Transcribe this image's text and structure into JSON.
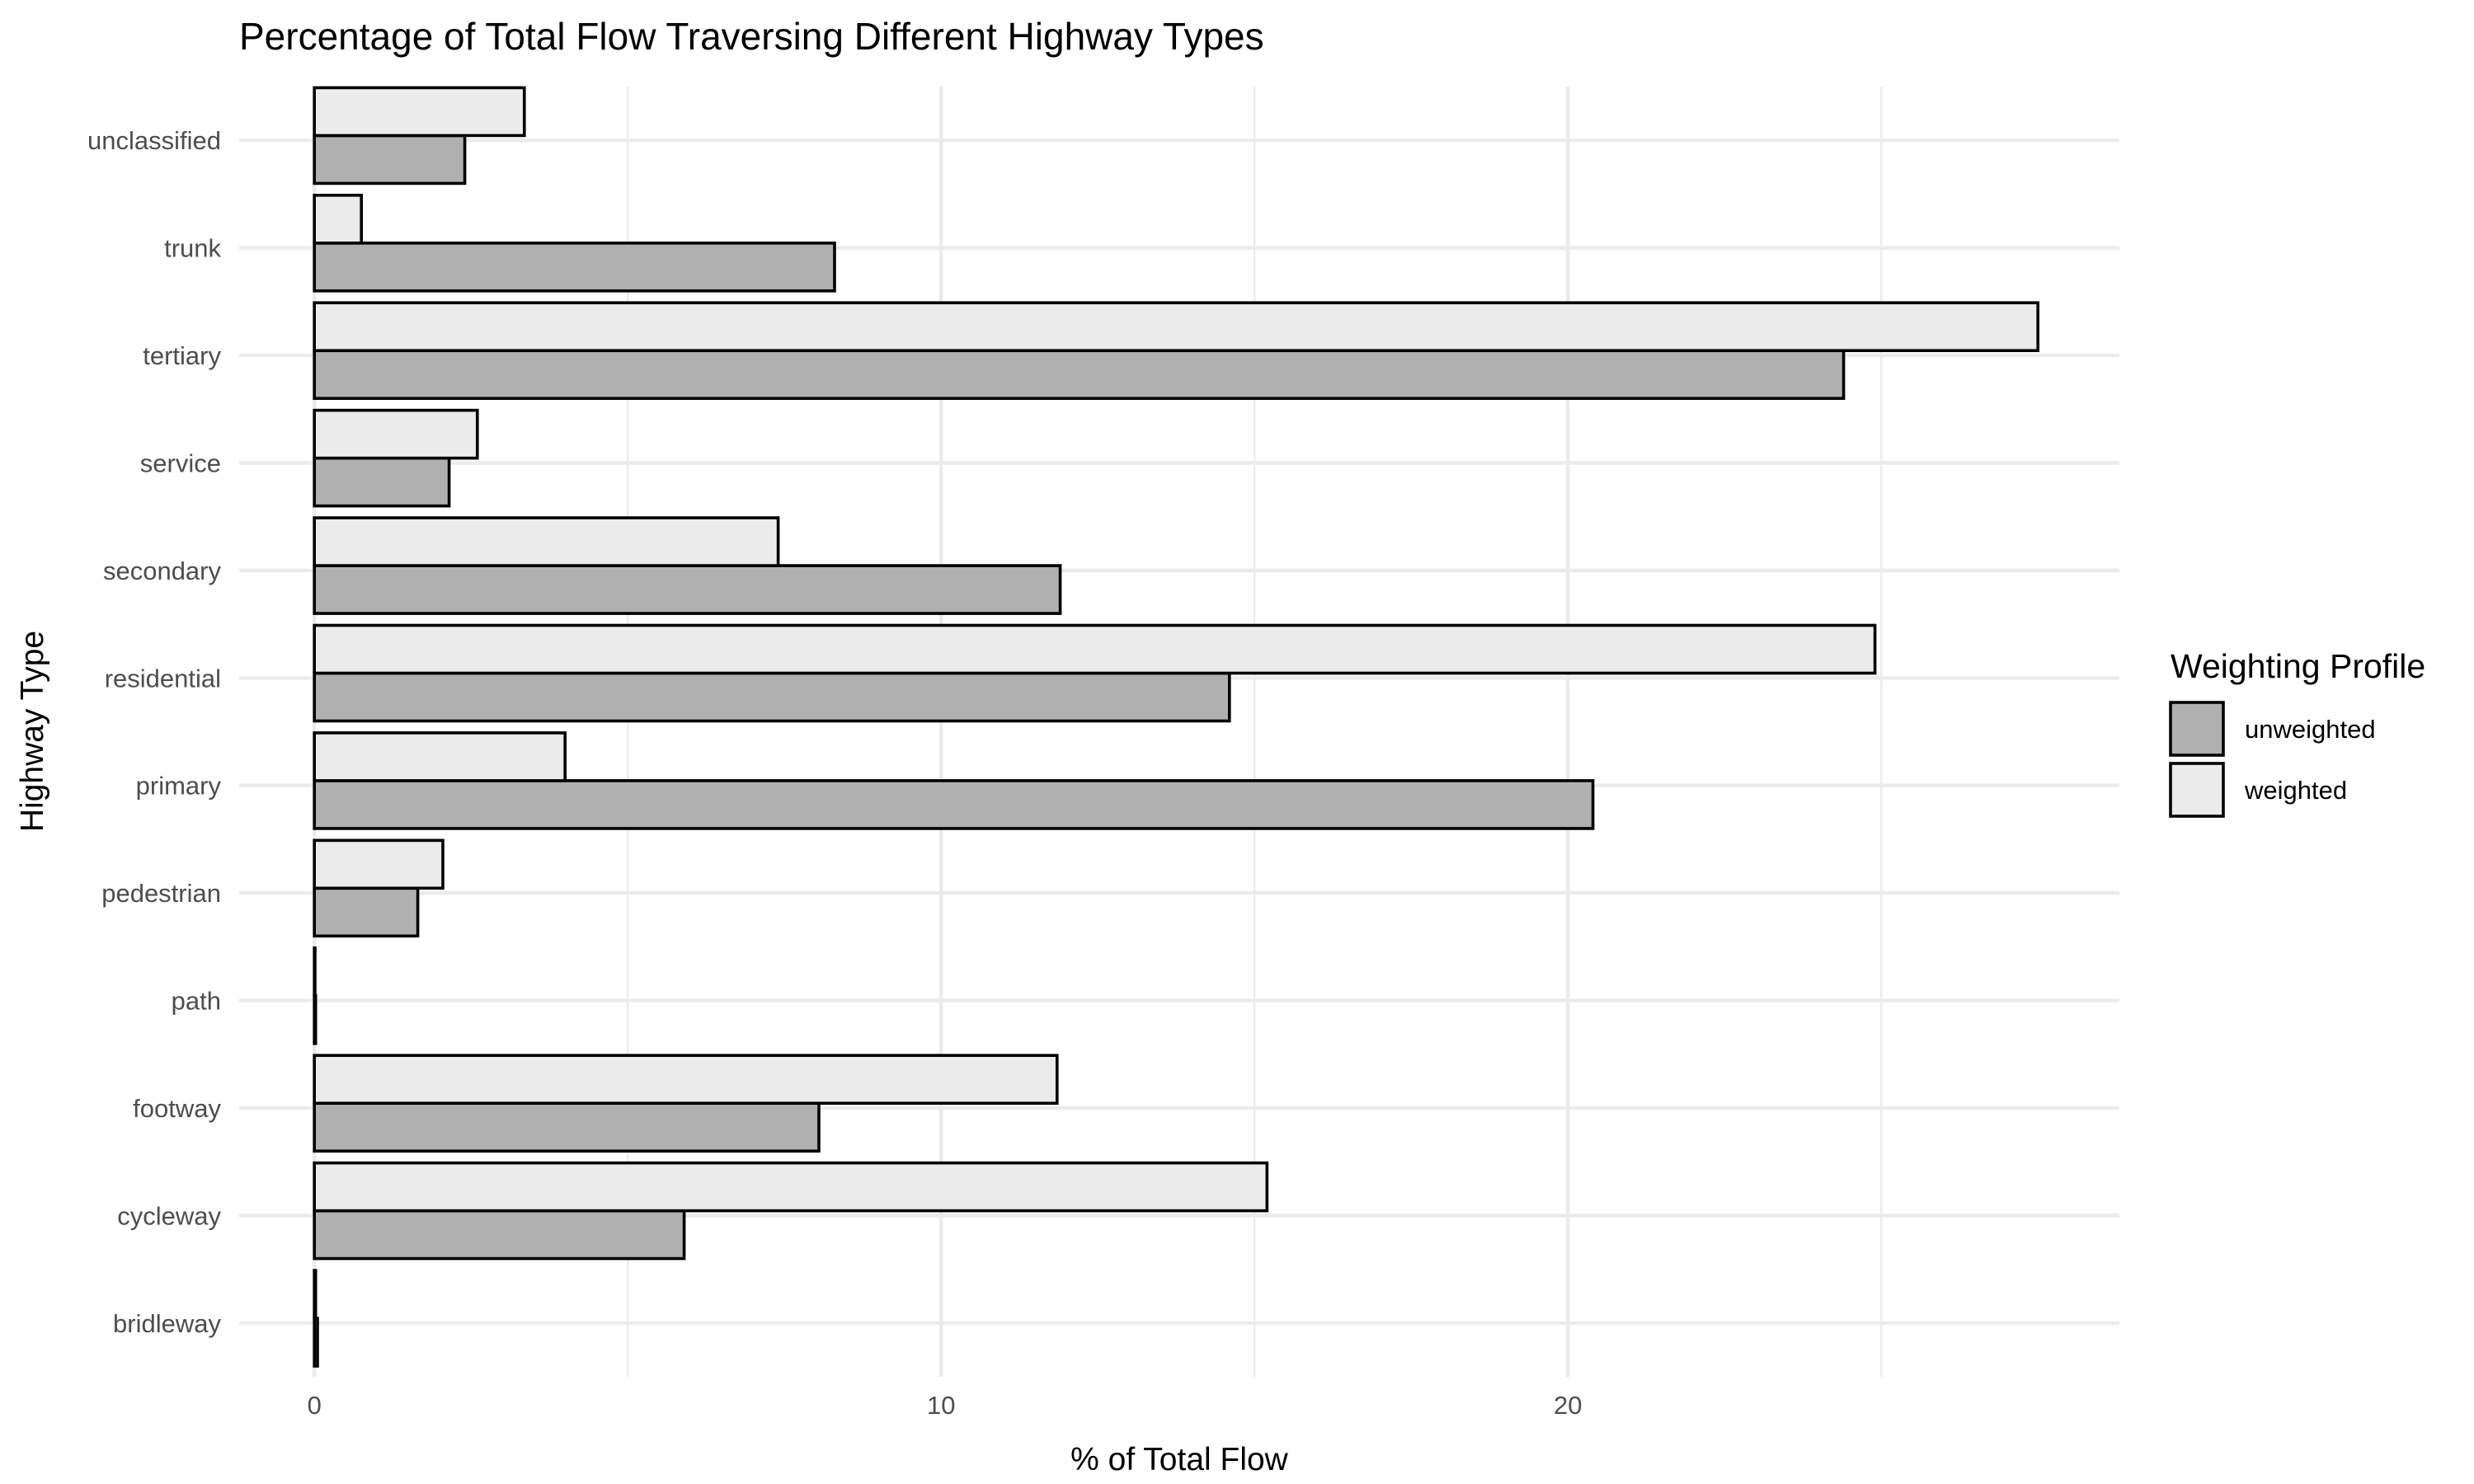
{
  "chart_data": {
    "type": "bar",
    "orientation": "horizontal",
    "title": "Percentage of Total Flow Traversing Different Highway Types",
    "xlabel": "% of Total Flow",
    "ylabel": "Highway Type",
    "xlim": [
      -1.2,
      28.8
    ],
    "x_ticks": [
      0,
      10,
      20
    ],
    "x_tick_labels": [
      "0",
      "10",
      "20"
    ],
    "categories": [
      "bridleway",
      "cycleway",
      "footway",
      "path",
      "pedestrian",
      "primary",
      "residential",
      "secondary",
      "service",
      "tertiary",
      "trunk",
      "unclassified"
    ],
    "series": [
      {
        "name": "unweighted",
        "color": "#b0b0b0",
        "values": [
          0.05,
          5.9,
          8.05,
          0.02,
          1.65,
          20.4,
          14.6,
          11.9,
          2.15,
          24.4,
          8.3,
          2.4
        ]
      },
      {
        "name": "weighted",
        "color": "#ebebeb",
        "values": [
          0.02,
          15.2,
          11.85,
          0.01,
          2.05,
          4.0,
          24.9,
          7.4,
          2.6,
          27.5,
          0.75,
          3.35
        ]
      }
    ],
    "grid": true,
    "legend": {
      "title": "Weighting Profile",
      "position": "right",
      "entries": [
        "unweighted",
        "weighted"
      ]
    }
  }
}
